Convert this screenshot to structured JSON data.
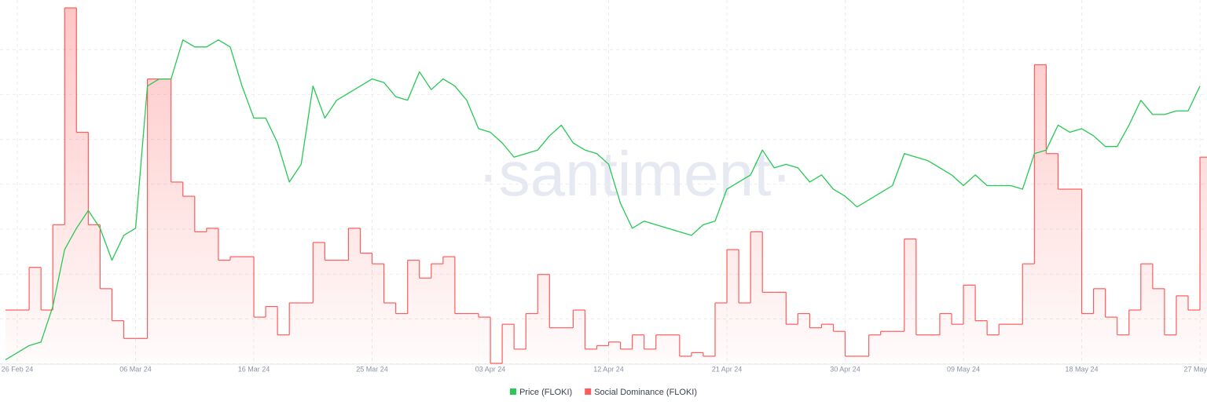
{
  "chart_data": {
    "type": "line",
    "watermark": "·santiment·",
    "categories": [
      null,
      "26 Feb 24",
      null,
      null,
      null,
      null,
      null,
      null,
      null,
      null,
      null,
      "06 Mar 24",
      null,
      null,
      null,
      null,
      null,
      null,
      null,
      null,
      null,
      "16 Mar 24",
      null,
      null,
      null,
      null,
      null,
      null,
      null,
      null,
      null,
      "25 Mar 24",
      null,
      null,
      null,
      null,
      null,
      null,
      null,
      null,
      null,
      "03 Apr 24",
      null,
      null,
      null,
      null,
      null,
      null,
      null,
      null,
      null,
      "12 Apr 24",
      null,
      null,
      null,
      null,
      null,
      null,
      null,
      null,
      null,
      "21 Apr 24",
      null,
      null,
      null,
      null,
      null,
      null,
      null,
      null,
      null,
      "30 Apr 24",
      null,
      null,
      null,
      null,
      null,
      null,
      null,
      null,
      null,
      "09 May 24",
      null,
      null,
      null,
      null,
      null,
      null,
      null,
      null,
      null,
      "18 May 24",
      null,
      null,
      null,
      null,
      null,
      null,
      null,
      null,
      null,
      "27 May"
    ],
    "series": [
      {
        "name": "Price (FLOKI)",
        "color": "#26c953",
        "style": "line",
        "values": [
          1,
          3,
          5,
          6,
          16,
          32,
          38,
          43,
          38,
          29,
          36,
          38,
          78,
          80,
          80,
          91,
          89,
          89,
          91,
          89,
          78,
          69,
          69,
          62,
          51,
          56,
          78,
          69,
          74,
          76,
          78,
          80,
          79,
          75,
          74,
          82,
          77,
          80,
          78,
          74,
          66,
          65,
          62,
          58,
          59,
          60,
          64,
          67,
          62,
          60,
          59,
          56,
          45,
          38,
          40,
          39,
          38,
          37,
          36,
          39,
          40,
          49,
          51,
          53,
          60,
          55,
          56,
          55,
          51,
          53,
          49,
          47,
          44,
          46,
          48,
          50,
          59,
          58,
          57,
          55,
          53,
          50,
          53,
          50,
          50,
          50,
          49,
          59,
          60,
          67,
          65,
          66,
          64,
          61,
          61,
          67,
          74,
          70,
          70,
          71,
          71,
          78
        ]
      },
      {
        "name": "Social Dominance (FLOKI)",
        "color": "#ff5b5b",
        "style": "step",
        "values": [
          15,
          15,
          27,
          15,
          39,
          100,
          65,
          39,
          21,
          12,
          7,
          7,
          80,
          80,
          51,
          47,
          37,
          38,
          29,
          30,
          30,
          13,
          16,
          8,
          17,
          17,
          34,
          29,
          29,
          38,
          31,
          28,
          17,
          14,
          29,
          24,
          28,
          30,
          14,
          14,
          13,
          0,
          11,
          4,
          14,
          25,
          10,
          10,
          15,
          4,
          5,
          6,
          4,
          8,
          4,
          8,
          8,
          2,
          3,
          2,
          17,
          32,
          17,
          37,
          20,
          20,
          11,
          14,
          10,
          11,
          9,
          2,
          2,
          8,
          9,
          9,
          35,
          8,
          8,
          14,
          11,
          22,
          12,
          8,
          11,
          11,
          28,
          84,
          59,
          49,
          49,
          14,
          21,
          13,
          8,
          15,
          28,
          21,
          8,
          19,
          15,
          58
        ]
      }
    ],
    "ylim": [
      0,
      100
    ],
    "grid": true,
    "legend": "bottom"
  }
}
